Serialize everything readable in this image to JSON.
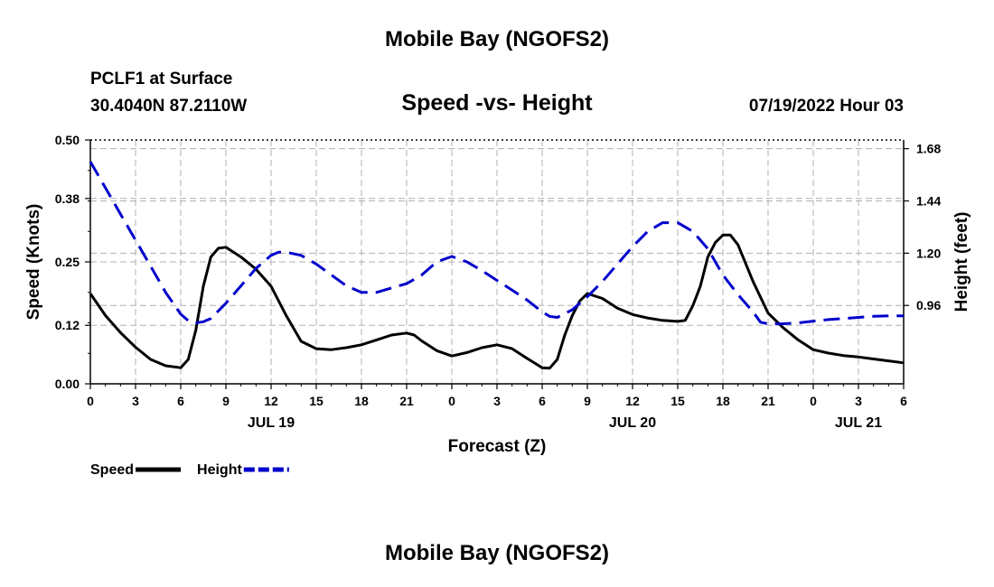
{
  "header": {
    "title": "Mobile Bay (NGOFS2)",
    "station": "PCLF1 at Surface",
    "coordinates": "30.4040N  87.2110W",
    "subtitle": "Speed -vs- Height",
    "datetime": "07/19/2022 Hour 03"
  },
  "footer": {
    "title": "Mobile Bay (NGOFS2)"
  },
  "chart_data": {
    "type": "line",
    "xlabel": "Forecast (Z)",
    "ylabel": "Speed (Knots)",
    "y2label": "Height (feet)",
    "xlim": [
      0,
      54
    ],
    "ylim": [
      0,
      0.5
    ],
    "y2lim": [
      0.6,
      1.72
    ],
    "yticks": [
      0.0,
      0.12,
      0.25,
      0.38,
      0.5
    ],
    "ytick_labels": [
      "0.00",
      "0.12",
      "0.25",
      "0.38",
      "0.50"
    ],
    "y2ticks": [
      0.96,
      1.2,
      1.44,
      1.68
    ],
    "y2tick_labels": [
      "0.96",
      "1.20",
      "1.44",
      "1.68"
    ],
    "xticks": [
      0,
      3,
      6,
      9,
      12,
      15,
      18,
      21,
      24,
      27,
      30,
      33,
      36,
      39,
      42,
      45,
      48,
      51,
      54
    ],
    "xtick_labels": [
      "0",
      "3",
      "6",
      "9",
      "12",
      "15",
      "18",
      "21",
      "0",
      "3",
      "6",
      "9",
      "12",
      "15",
      "18",
      "21",
      "0",
      "3",
      "6"
    ],
    "date_labels": [
      {
        "x": 12,
        "label": "JUL 19"
      },
      {
        "x": 36,
        "label": "JUL 20"
      },
      {
        "x": 51,
        "label": "JUL 21"
      }
    ],
    "grid": true,
    "legend": "bottom-left",
    "series": [
      {
        "name": "Speed",
        "axis": "left",
        "color": "#000000",
        "dash": "solid",
        "x": [
          0,
          1,
          2,
          3,
          4,
          5,
          6,
          6.5,
          7,
          7.5,
          8,
          8.5,
          9,
          10,
          11,
          12,
          13,
          14,
          15,
          16,
          17,
          18,
          19,
          20,
          21,
          21.5,
          22,
          23,
          24,
          25,
          26,
          27,
          28,
          29,
          30,
          30.5,
          31,
          31.5,
          32,
          32.5,
          33,
          34,
          35,
          36,
          37,
          38,
          39,
          39.5,
          40,
          40.5,
          41,
          41.5,
          42,
          42.5,
          43,
          44,
          45,
          46,
          47,
          48,
          49,
          50,
          51,
          52,
          53,
          54
        ],
        "values": [
          0.185,
          0.14,
          0.105,
          0.075,
          0.05,
          0.037,
          0.033,
          0.05,
          0.11,
          0.2,
          0.26,
          0.278,
          0.28,
          0.26,
          0.235,
          0.2,
          0.14,
          0.087,
          0.072,
          0.07,
          0.074,
          0.08,
          0.09,
          0.1,
          0.104,
          0.1,
          0.088,
          0.068,
          0.057,
          0.064,
          0.074,
          0.08,
          0.072,
          0.052,
          0.033,
          0.032,
          0.05,
          0.1,
          0.14,
          0.17,
          0.185,
          0.175,
          0.155,
          0.142,
          0.135,
          0.13,
          0.128,
          0.13,
          0.16,
          0.2,
          0.26,
          0.29,
          0.305,
          0.305,
          0.285,
          0.21,
          0.145,
          0.115,
          0.09,
          0.07,
          0.063,
          0.058,
          0.055,
          0.051,
          0.047,
          0.043
        ]
      },
      {
        "name": "Height",
        "axis": "right",
        "color": "#0000cc",
        "dash": "dashed",
        "x": [
          0,
          1,
          2,
          3,
          4,
          5,
          6,
          6.5,
          7,
          7.5,
          8,
          9,
          10,
          11,
          12,
          12.5,
          13,
          14,
          15,
          16,
          17,
          18,
          19,
          20,
          21,
          22,
          23,
          24,
          25,
          26,
          27,
          28,
          29,
          30,
          30.5,
          31,
          32,
          33,
          34,
          35,
          36,
          37,
          38,
          39,
          40,
          41,
          42,
          43,
          44,
          44.5,
          45,
          46,
          47,
          48,
          49,
          50,
          51,
          52,
          53,
          54
        ],
        "values": [
          1.62,
          1.5,
          1.38,
          1.26,
          1.14,
          1.02,
          0.92,
          0.89,
          0.88,
          0.885,
          0.9,
          0.97,
          1.05,
          1.13,
          1.19,
          1.205,
          1.205,
          1.19,
          1.15,
          1.1,
          1.05,
          1.02,
          1.02,
          1.04,
          1.06,
          1.1,
          1.16,
          1.185,
          1.16,
          1.12,
          1.075,
          1.03,
          0.985,
          0.93,
          0.91,
          0.905,
          0.94,
          1.0,
          1.07,
          1.15,
          1.23,
          1.3,
          1.34,
          1.34,
          1.3,
          1.22,
          1.1,
          1.01,
          0.93,
          0.883,
          0.875,
          0.876,
          0.88,
          0.888,
          0.895,
          0.9,
          0.905,
          0.91,
          0.912,
          0.912
        ]
      }
    ]
  }
}
